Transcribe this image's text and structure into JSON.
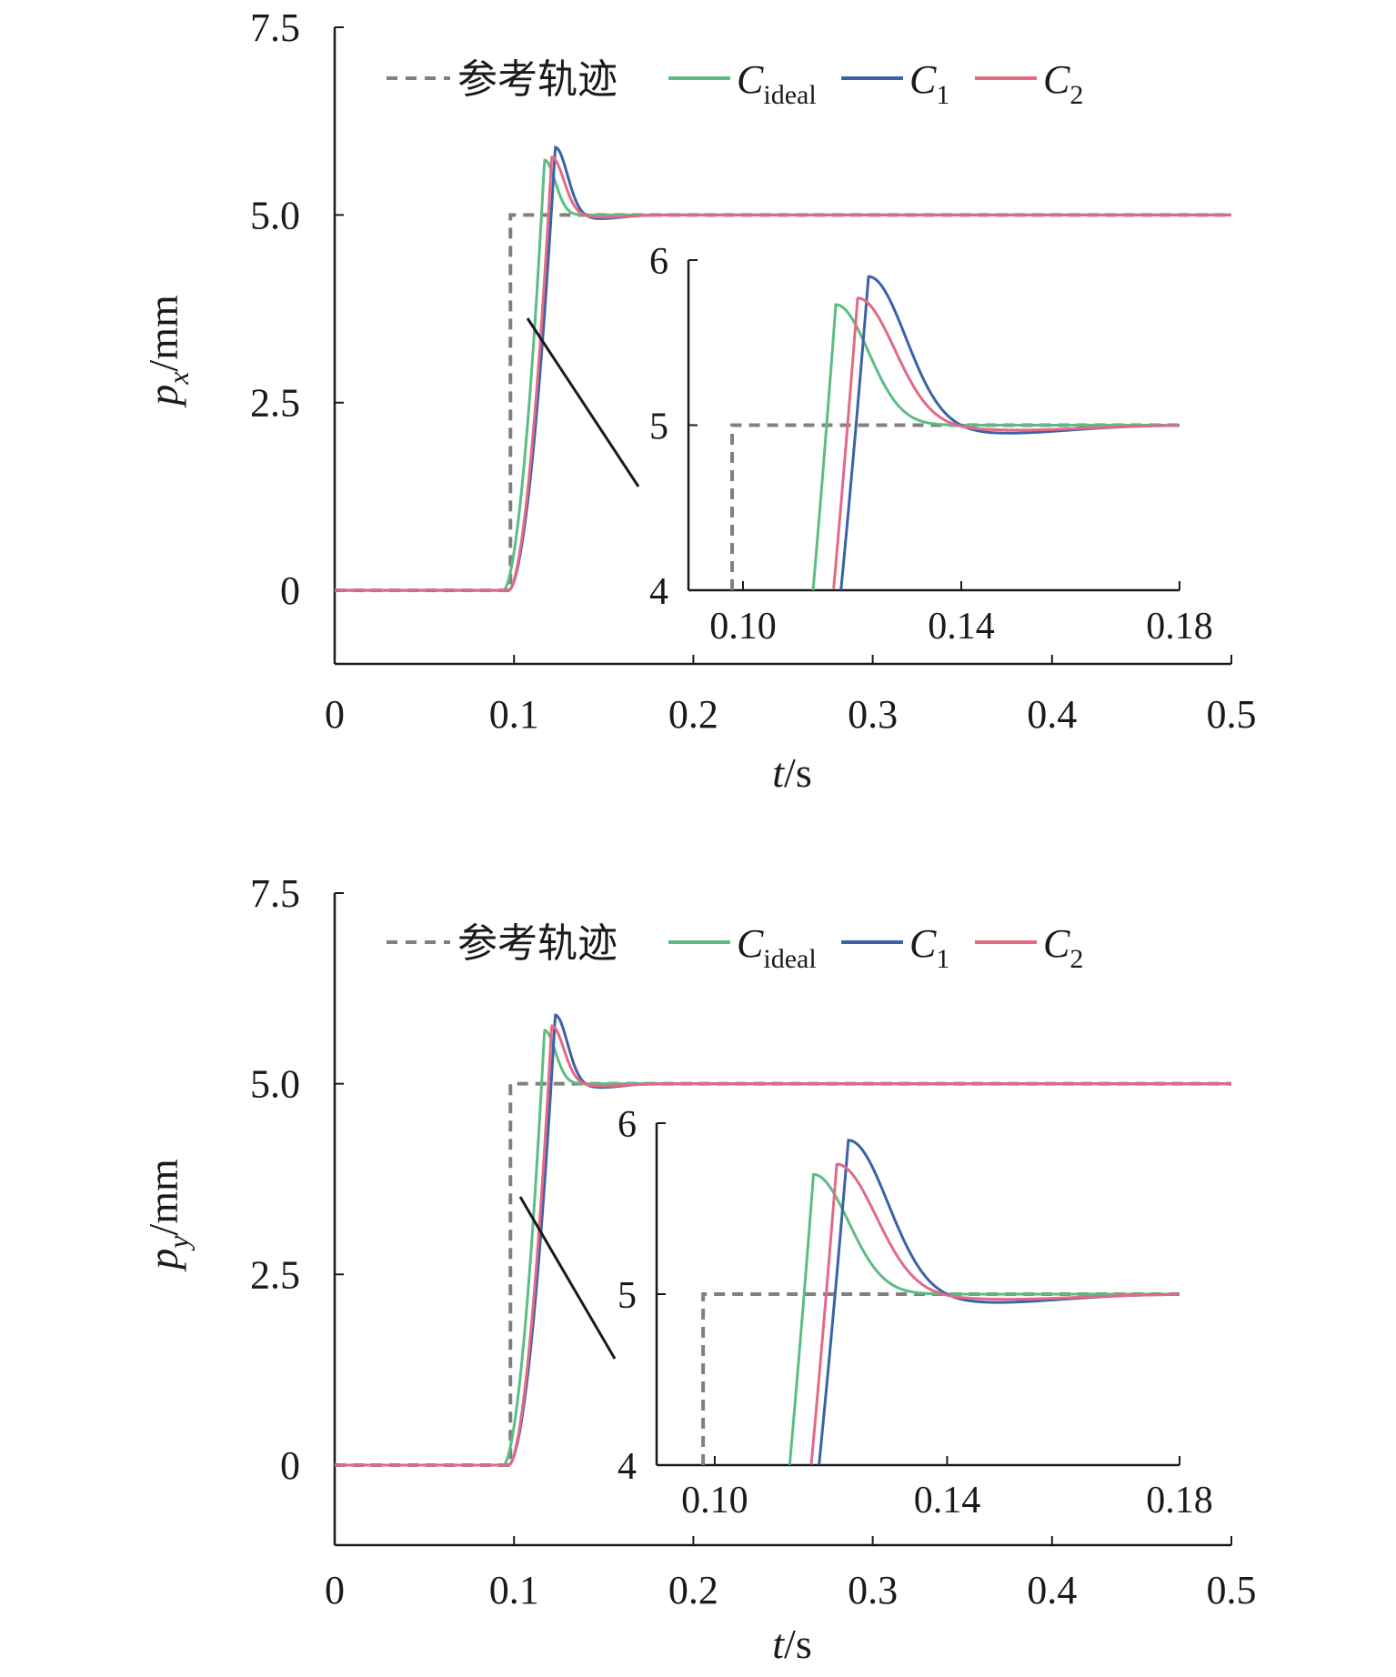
{
  "colors": {
    "reference": "#808080",
    "ideal": "#5bbd84",
    "c1": "#3b62a6",
    "c2": "#e36a85",
    "axis": "#1a1a1a"
  },
  "legend": {
    "reference": "参考轨迹",
    "ideal": {
      "main": "C",
      "sub": "ideal"
    },
    "c1": {
      "main": "C",
      "sub": "1"
    },
    "c2": {
      "main": "C",
      "sub": "2"
    }
  },
  "chart_data": [
    {
      "type": "line",
      "xlabel": {
        "var": "t",
        "unit": "/s"
      },
      "ylabel": {
        "var": "p",
        "sub": "x",
        "unit": "/mm"
      },
      "xlim": [
        0,
        0.5
      ],
      "ylim": [
        -0.98,
        7.5
      ],
      "xticks": [
        "0",
        "0.1",
        "0.2",
        "0.3",
        "0.4",
        "0.5"
      ],
      "xtick_values": [
        0,
        0.1,
        0.2,
        0.3,
        0.4,
        0.5
      ],
      "yticks": [
        "0",
        "2.5",
        "5.0",
        "7.5"
      ],
      "ytick_values": [
        0,
        2.5,
        5.0,
        7.5
      ],
      "step": {
        "t0": 0.098,
        "target": 5.0
      },
      "response": {
        "ideal": {
          "rise_start": 0.094,
          "peak_t": 0.117,
          "peak": 5.73
        },
        "c1": {
          "rise_start": 0.097,
          "peak_t": 0.123,
          "peak": 5.9,
          "undershoot_t": 0.147,
          "undershoot": 4.95
        },
        "c2": {
          "rise_start": 0.097,
          "peak_t": 0.121,
          "peak": 5.77,
          "undershoot_t": 0.15,
          "undershoot": 4.97
        }
      },
      "inset": {
        "xlim": [
          0.09,
          0.18
        ],
        "ylim": [
          4,
          6
        ],
        "xticks": [
          "0.10",
          "0.14",
          "0.18"
        ],
        "xtick_values": [
          0.1,
          0.14,
          0.18
        ],
        "yticks": [
          "4",
          "5",
          "6"
        ],
        "ytick_values": [
          4,
          5,
          6
        ]
      }
    },
    {
      "type": "line",
      "xlabel": {
        "var": "t",
        "unit": "/s"
      },
      "ylabel": {
        "var": "p",
        "sub": "y",
        "unit": "/mm"
      },
      "xlim": [
        0,
        0.5
      ],
      "ylim": [
        -1.05,
        7.5
      ],
      "xticks": [
        "0",
        "0.1",
        "0.2",
        "0.3",
        "0.4",
        "0.5"
      ],
      "xtick_values": [
        0,
        0.1,
        0.2,
        0.3,
        0.4,
        0.5
      ],
      "yticks": [
        "0",
        "2.5",
        "5.0",
        "7.5"
      ],
      "ytick_values": [
        0,
        2.5,
        5.0,
        7.5
      ],
      "step": {
        "t0": 0.098,
        "target": 5.0
      },
      "response": {
        "ideal": {
          "rise_start": 0.094,
          "peak_t": 0.117,
          "peak": 5.7
        },
        "c1": {
          "rise_start": 0.097,
          "peak_t": 0.123,
          "peak": 5.9,
          "undershoot_t": 0.147,
          "undershoot": 4.95
        },
        "c2": {
          "rise_start": 0.097,
          "peak_t": 0.121,
          "peak": 5.76,
          "undershoot_t": 0.15,
          "undershoot": 4.97
        }
      },
      "inset": {
        "xlim": [
          0.09,
          0.18
        ],
        "ylim": [
          4,
          6
        ],
        "xticks": [
          "0.10",
          "0.14",
          "0.18"
        ],
        "xtick_values": [
          0.1,
          0.14,
          0.18
        ],
        "yticks": [
          "4",
          "5",
          "6"
        ],
        "ytick_values": [
          4,
          5,
          6
        ]
      }
    }
  ]
}
